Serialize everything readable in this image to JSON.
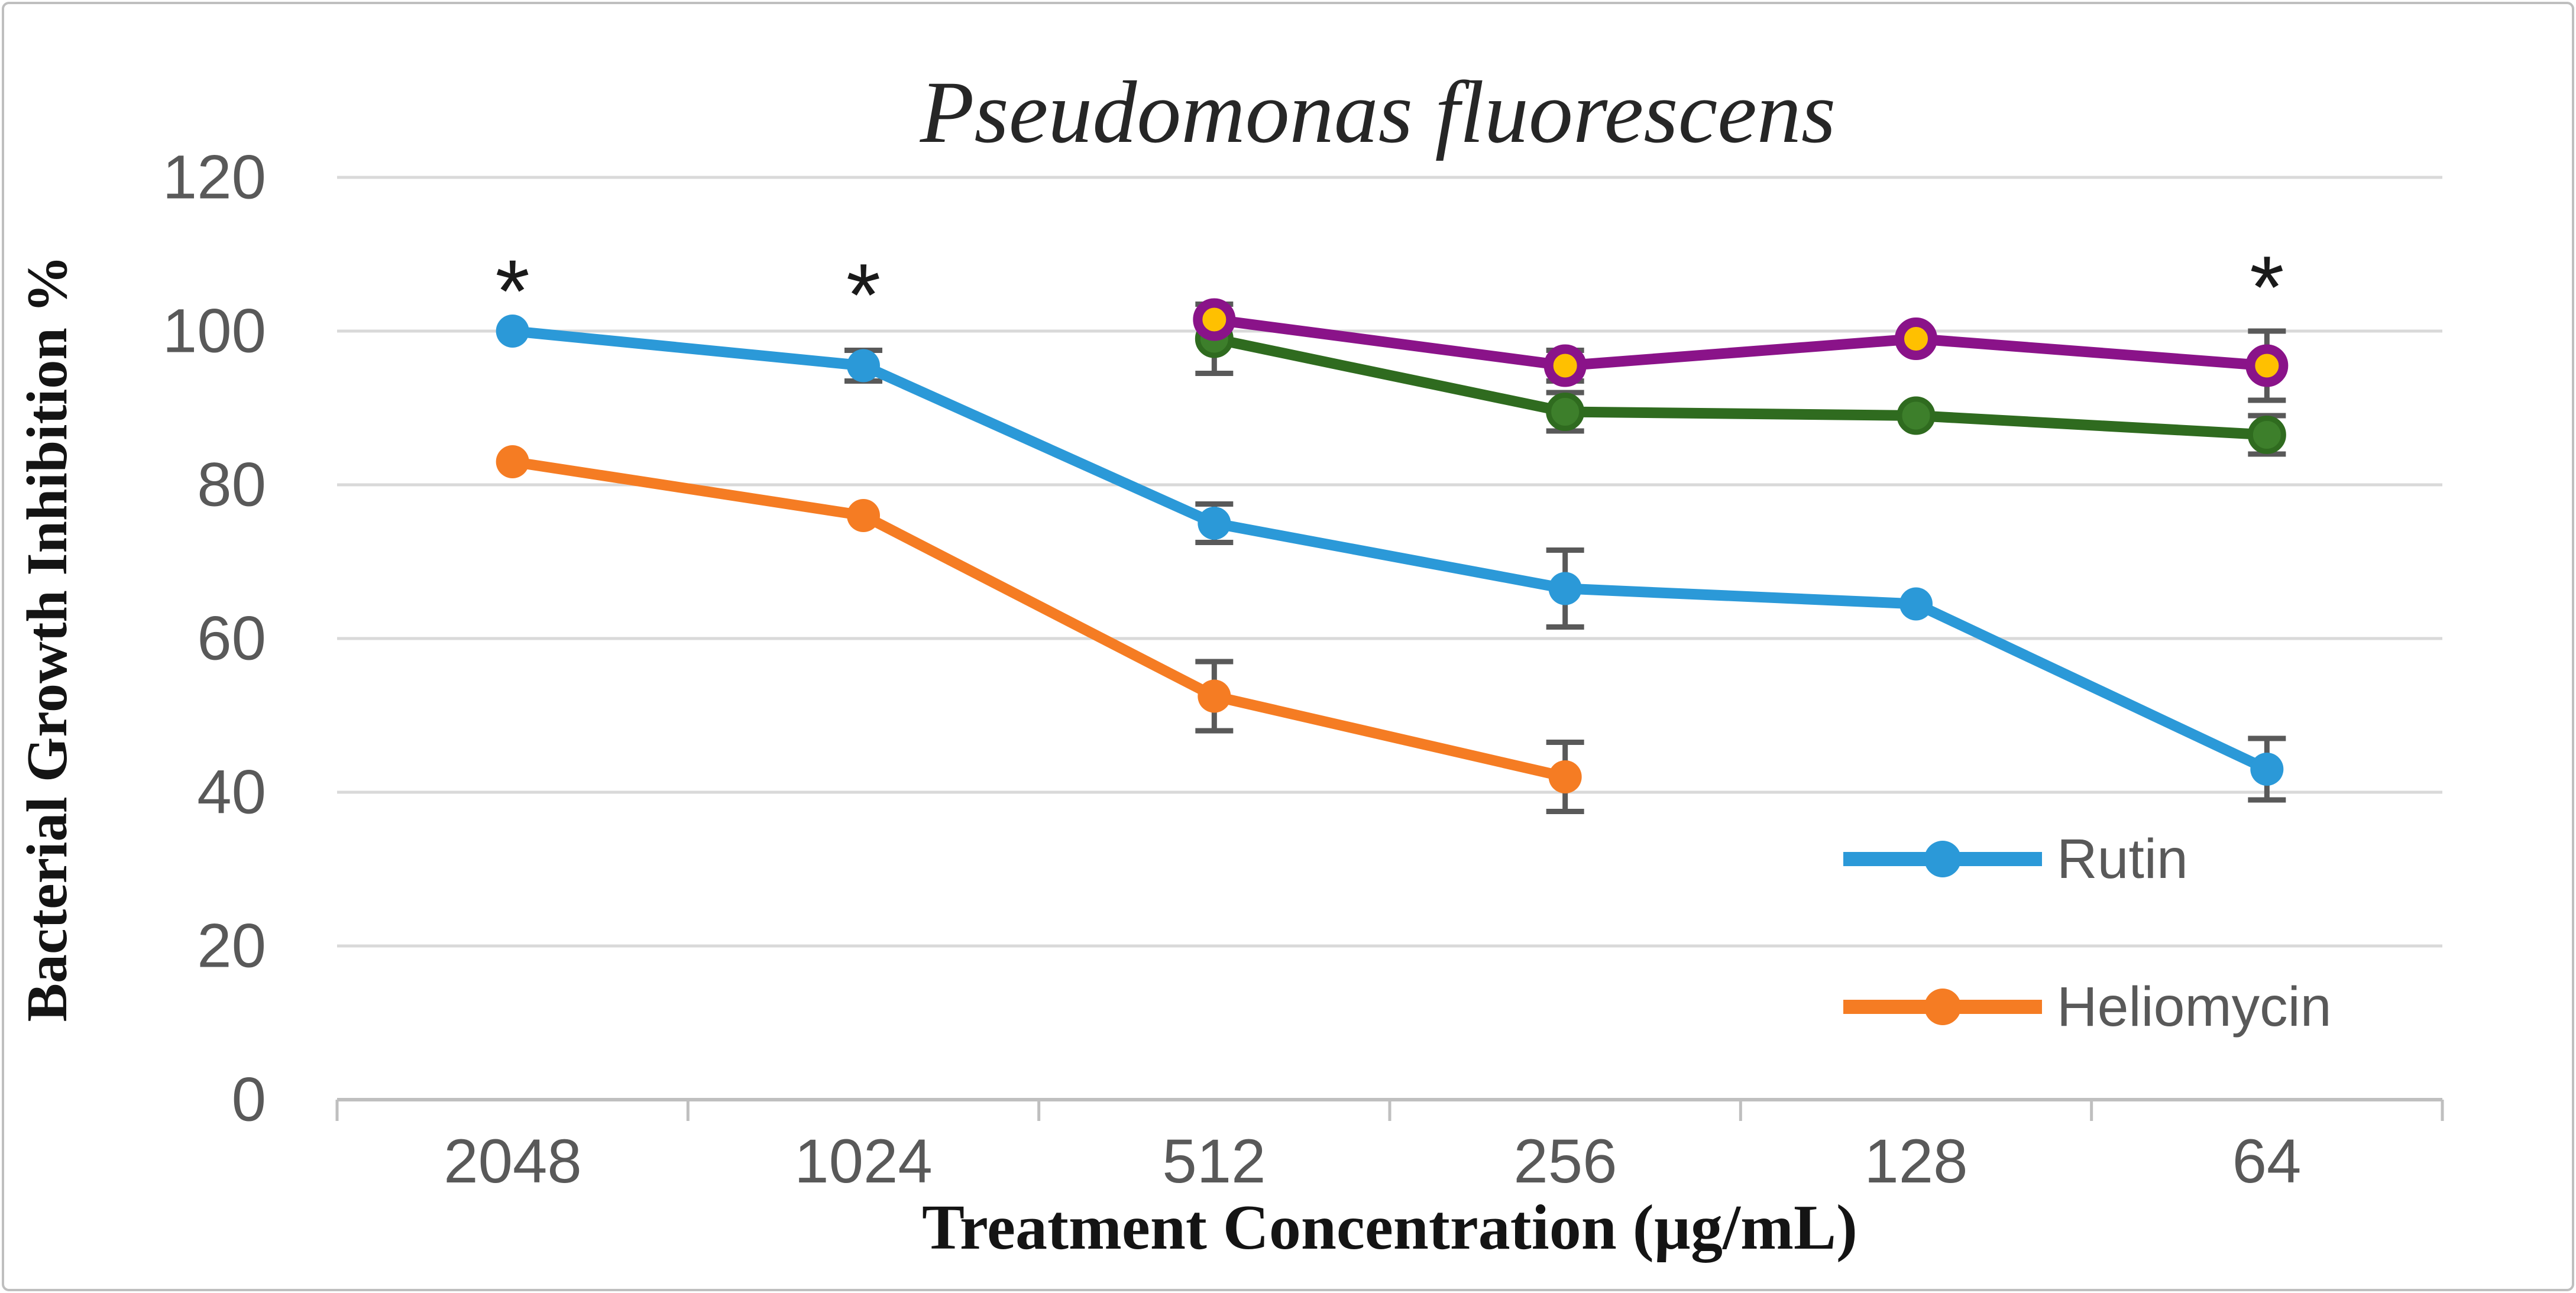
{
  "chart_data": {
    "type": "line",
    "title": "Pseudomonas fluorescens",
    "xlabel": "Treatment Concentration (µg/mL)",
    "ylabel": "Bacterial Growth Inhibition %",
    "categories": [
      "2048",
      "1024",
      "512",
      "256",
      "128",
      "64"
    ],
    "ylim": [
      0,
      120
    ],
    "ytick_step": 20,
    "ytick_labels": [
      "0",
      "20",
      "40",
      "60",
      "80",
      "100",
      "120"
    ],
    "grid": "horizontal",
    "legend_position": "right-middle",
    "series": [
      {
        "name": "Rutin",
        "key": "rutin",
        "color": "#2B99D8",
        "marker_fill": "#2B99D8",
        "marker_ring": 0,
        "in_legend": true,
        "values": [
          100,
          95.5,
          75,
          66.5,
          64.5,
          43
        ],
        "errors": [
          0,
          2,
          2.5,
          5,
          0,
          4
        ]
      },
      {
        "name": "Heliomycin",
        "key": "heliomycin",
        "color": "#F57C23",
        "marker_fill": "#F57C23",
        "marker_ring": 0,
        "in_legend": true,
        "values": [
          83,
          76,
          52.5,
          42,
          null,
          null
        ],
        "errors": [
          0,
          0,
          4.5,
          4.5,
          0,
          0
        ]
      },
      {
        "name": "",
        "key": "unnamed-green",
        "color": "#2F6B1F",
        "marker_fill": "#3D7F2B",
        "marker_ring": 9,
        "in_legend": false,
        "values": [
          null,
          null,
          99,
          89.5,
          89,
          86.5
        ],
        "errors": [
          0,
          0,
          4.5,
          2.5,
          0,
          2.5
        ]
      },
      {
        "name": "",
        "key": "unnamed-purple",
        "color": "#8A1389",
        "marker_fill": "#FFC000",
        "marker_ring": 16,
        "in_legend": false,
        "values": [
          null,
          null,
          101.5,
          95.5,
          99,
          95.5
        ],
        "errors": [
          0,
          0,
          0,
          2,
          0,
          4.5
        ]
      }
    ],
    "annotations": [
      {
        "text": "*",
        "category_index": 0,
        "value": 107
      },
      {
        "text": "*",
        "category_index": 1,
        "value": 106.5
      },
      {
        "text": "*",
        "category_index": 5,
        "value": 107.5
      }
    ],
    "colors": {
      "gridline": "#D9D9D9",
      "axis_line": "#BFBFBF",
      "error_bar": "#595959",
      "tick_label": "#595959",
      "figure_border": "#BFBFBF",
      "background": "#FFFFFF"
    }
  }
}
